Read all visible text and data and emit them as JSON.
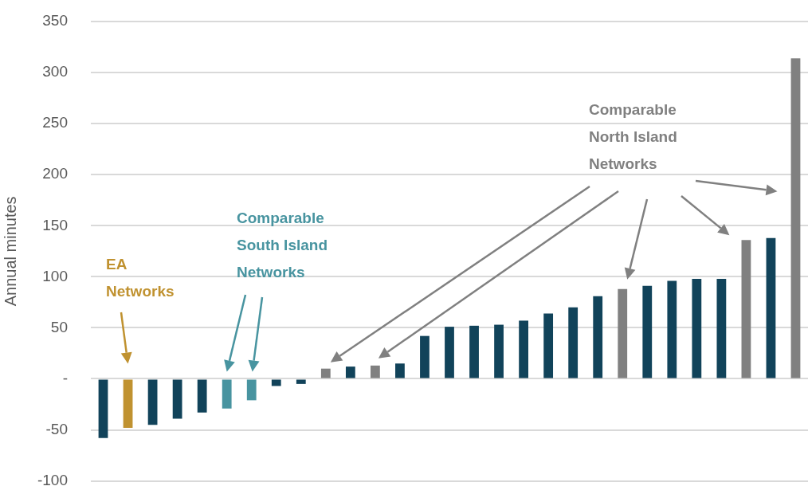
{
  "chart_data": {
    "type": "bar",
    "ylabel": "Annual minutes",
    "annotations": [
      "EA Networks",
      "Comparable South Island Networks",
      "Comparable North Island Networks"
    ],
    "categories": [
      null,
      null,
      null,
      null,
      null,
      null,
      null,
      null,
      null,
      null,
      null,
      null,
      null,
      null,
      null,
      null,
      null,
      null,
      null,
      null,
      null,
      null,
      null,
      null,
      null,
      null,
      null,
      null,
      null
    ],
    "values": [
      -58,
      -48,
      -45,
      -39,
      -33,
      -29,
      -21,
      -7,
      -5,
      10,
      12,
      13,
      15,
      42,
      51,
      52,
      53,
      57,
      64,
      70,
      81,
      88,
      91,
      96,
      98,
      98,
      136,
      138,
      314
    ],
    "colors": [
      "#11435a",
      "#c09230",
      "#11435a",
      "#11435a",
      "#11435a",
      "#4894a0",
      "#4894a0",
      "#11435a",
      "#11435a",
      "#808080",
      "#11435a",
      "#808080",
      "#11435a",
      "#11435a",
      "#11435a",
      "#11435a",
      "#11435a",
      "#11435a",
      "#11435a",
      "#11435a",
      "#11435a",
      "#808080",
      "#11435a",
      "#11435a",
      "#11435a",
      "#11435a",
      "#808080",
      "#11435a",
      "#808080"
    ],
    "ylim": [
      -100,
      350
    ],
    "yticks": [
      -100,
      -50,
      {
        "value": 0,
        "label": "-"
      },
      50,
      100,
      150,
      200,
      250,
      300,
      350
    ],
    "grid": "y",
    "legend": false,
    "tick_labels": "y"
  }
}
